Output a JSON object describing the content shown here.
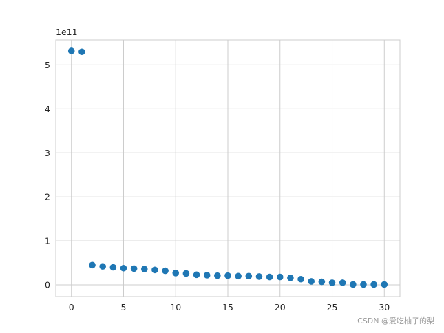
{
  "chart_data": {
    "type": "scatter",
    "title": "",
    "xlabel": "",
    "ylabel": "",
    "y_offset_label": "1e11",
    "xlim": [
      -1.5,
      31.5
    ],
    "ylim": [
      -0.265,
      5.57
    ],
    "x_ticks": [
      0,
      5,
      10,
      15,
      20,
      25,
      30
    ],
    "y_ticks": [
      0,
      1,
      2,
      3,
      4,
      5
    ],
    "grid": true,
    "marker_color": "#1f77b4",
    "series": [
      {
        "x": [
          0,
          1,
          2,
          3,
          4,
          5,
          6,
          7,
          8,
          9,
          10,
          11,
          12,
          13,
          14,
          15,
          16,
          17,
          18,
          19,
          20,
          21,
          22,
          23,
          24,
          25,
          26,
          27,
          28,
          29,
          30
        ],
        "y": [
          5.32,
          5.3,
          0.45,
          0.42,
          0.4,
          0.38,
          0.37,
          0.36,
          0.34,
          0.32,
          0.27,
          0.26,
          0.23,
          0.22,
          0.21,
          0.21,
          0.2,
          0.2,
          0.19,
          0.18,
          0.18,
          0.16,
          0.13,
          0.08,
          0.07,
          0.05,
          0.05,
          0.01,
          0.01,
          0.01,
          0.01
        ]
      }
    ]
  },
  "watermark": "CSDN @爱吃柚子的梨"
}
